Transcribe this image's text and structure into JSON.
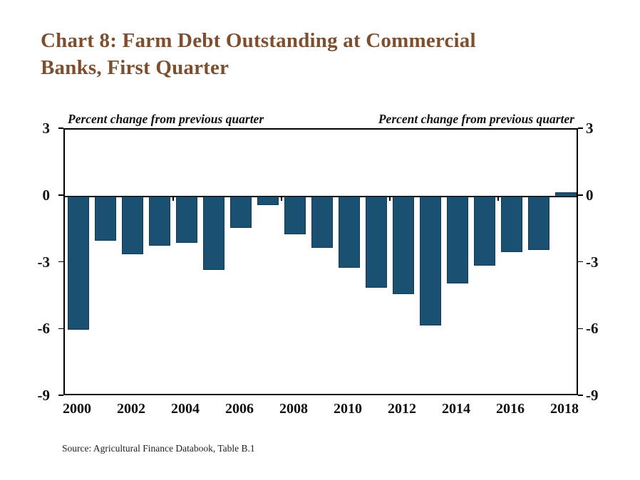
{
  "title": {
    "line1": "Chart 8: Farm Debt Outstanding at Commercial",
    "line2": "Banks, First Quarter"
  },
  "header_labels": {
    "left": "Percent change from previous quarter",
    "right": "Percent change from previous quarter"
  },
  "source": "Source: Agricultural Finance Databook, Table B.1",
  "chart_data": {
    "type": "bar",
    "title": "Chart 8: Farm Debt Outstanding at Commercial Banks, First Quarter",
    "ylabel_left": "Percent change from previous quarter",
    "ylabel_right": "Percent change from previous quarter",
    "categories": [
      "2000",
      "2001",
      "2002",
      "2003",
      "2004",
      "2005",
      "2006",
      "2007",
      "2008",
      "2009",
      "2010",
      "2011",
      "2012",
      "2013",
      "2014",
      "2015",
      "2016",
      "2017",
      "2018"
    ],
    "values": [
      -6.0,
      -2.0,
      -2.6,
      -2.2,
      -2.1,
      -3.3,
      -1.4,
      -0.4,
      -1.7,
      -2.3,
      -3.2,
      -4.1,
      -4.4,
      -5.8,
      -3.9,
      -3.1,
      -2.5,
      -2.4,
      0.2
    ],
    "ylim": [
      -9,
      3
    ],
    "yticks": [
      3,
      0,
      -3,
      -6,
      -9
    ],
    "xtick_labels": [
      "2000",
      "2002",
      "2004",
      "2006",
      "2008",
      "2010",
      "2012",
      "2014",
      "2016",
      "2018"
    ],
    "xtick_minor_at": [
      "2004",
      "2008",
      "2012",
      "2016"
    ],
    "grid": "none",
    "legend": "none",
    "bar_color": "#1a5173",
    "bar_border_color": "#123b55",
    "axis_color": "#000000",
    "title_color": "#7d4f2e",
    "source": "Source: Agricultural Finance Databook, Table B.1"
  }
}
